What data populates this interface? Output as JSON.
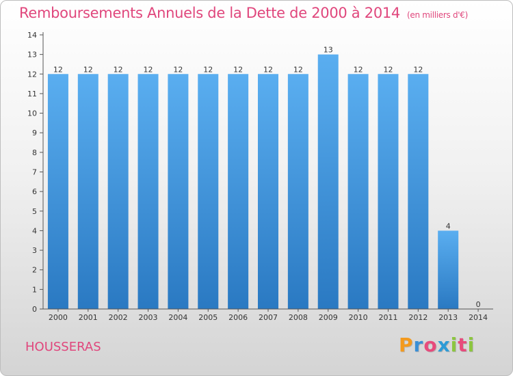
{
  "header": {
    "title": "Remboursements Annuels de la Dette de 2000 à 2014",
    "subtitle": "(en milliers d'€)"
  },
  "footer": {
    "place": "HOUSSERAS",
    "brand_letters": [
      "P",
      "r",
      "o",
      "x",
      "i",
      "t",
      "i"
    ],
    "brand_colors": [
      "#f39a1e",
      "#3a8fd6",
      "#e74b7c",
      "#2e9bd6",
      "#8cc63f",
      "#e74b7c",
      "#8cc63f"
    ]
  },
  "chart_data": {
    "type": "bar",
    "categories": [
      "2000",
      "2001",
      "2002",
      "2003",
      "2004",
      "2005",
      "2006",
      "2007",
      "2008",
      "2009",
      "2010",
      "2011",
      "2012",
      "2013",
      "2014"
    ],
    "values": [
      12,
      12,
      12,
      12,
      12,
      12,
      12,
      12,
      12,
      13,
      12,
      12,
      12,
      4,
      0
    ],
    "data_labels": [
      "12",
      "12",
      "12",
      "12",
      "12",
      "12",
      "12",
      "12",
      "12",
      "13",
      "12",
      "12",
      "12",
      "4",
      "0"
    ],
    "yticks": [
      0,
      1,
      2,
      3,
      4,
      5,
      6,
      7,
      8,
      9,
      10,
      11,
      12,
      13,
      14
    ],
    "ylim": [
      0,
      14
    ],
    "grid": false,
    "bar_color_top": "#5aaef0",
    "bar_color_bottom": "#2a79c2",
    "label_color": "#333333"
  }
}
